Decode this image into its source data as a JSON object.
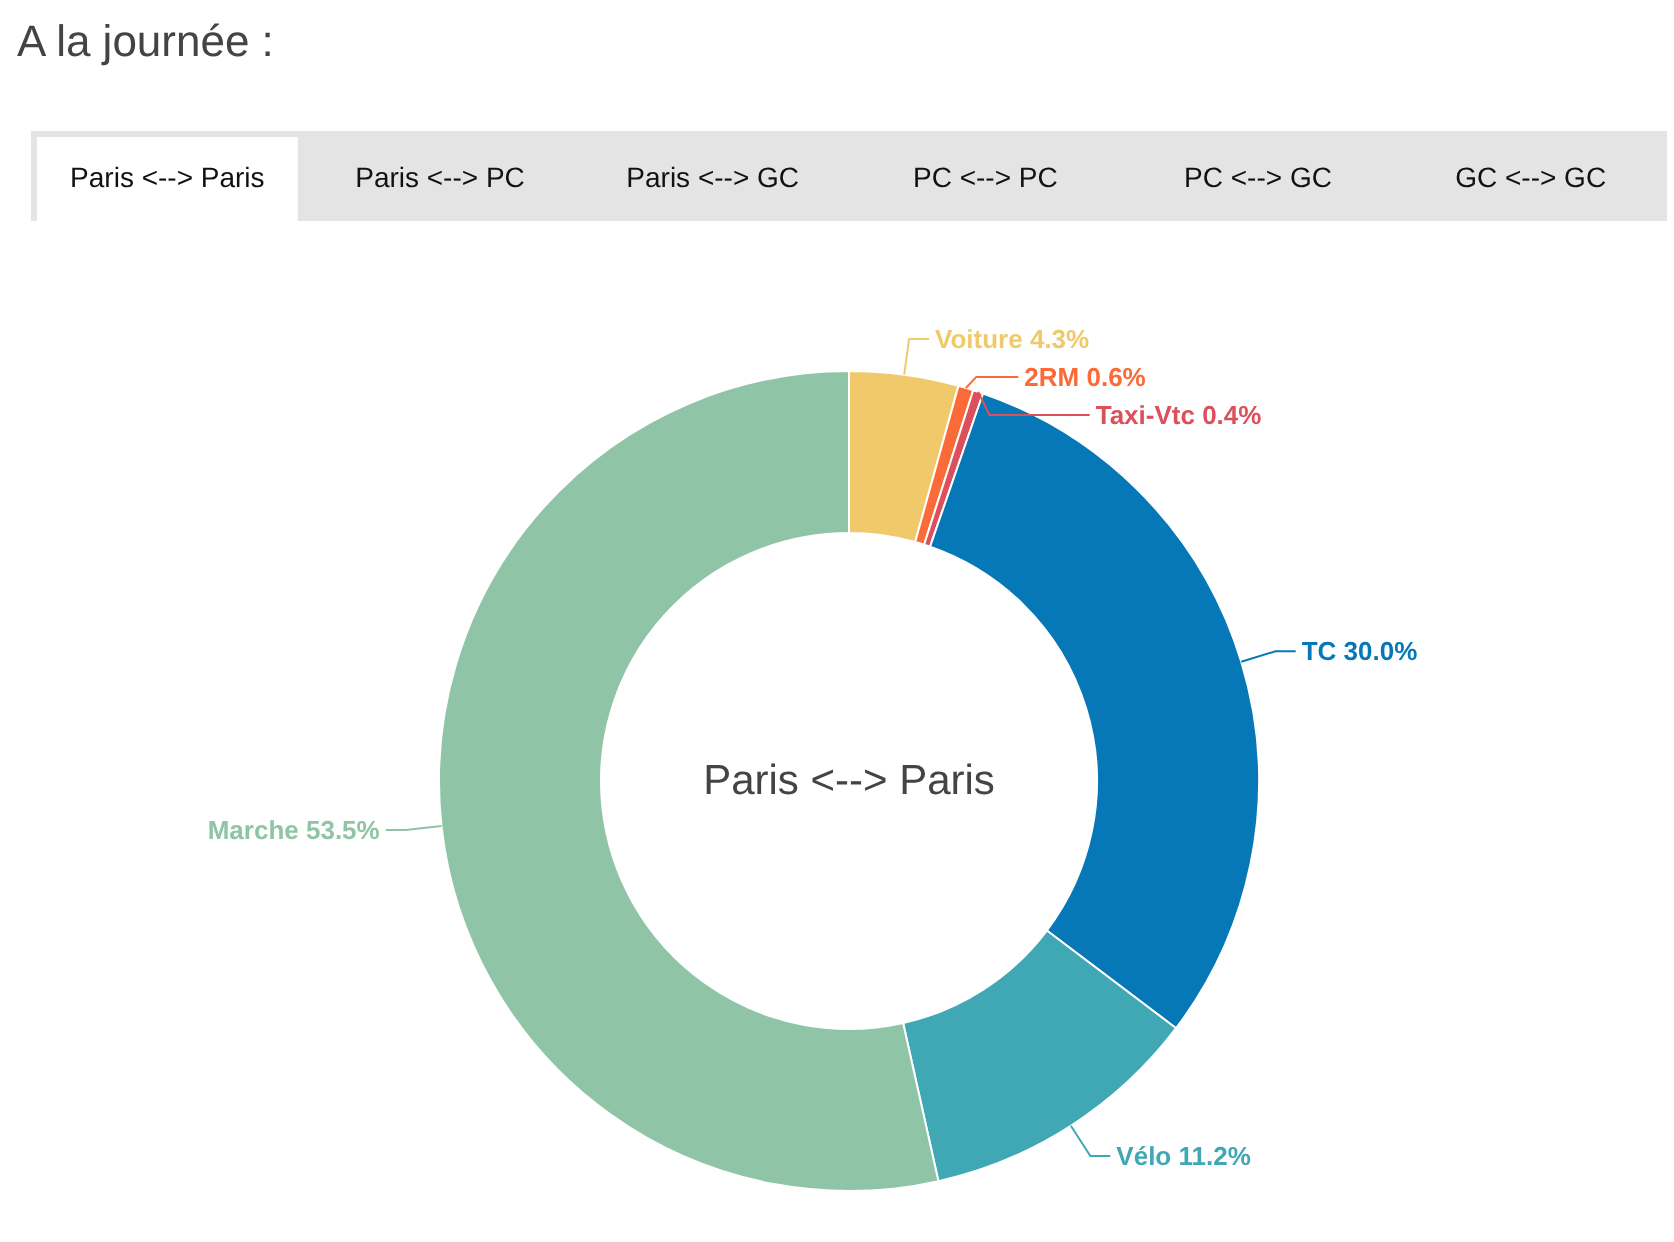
{
  "chart_data": {
    "type": "donut",
    "title": "A la journée :",
    "subtitle": "Paris <--> Paris",
    "annotations": [
      "Paris <--> Paris",
      "Paris <--> PC",
      "Paris <--> GC",
      "PC <--> PC",
      "PC <--> GC",
      "GC <--> GC"
    ],
    "categories": [
      "Voiture",
      "2RM",
      "Taxi-Vtc",
      "TC",
      "Vélo",
      "Marche"
    ],
    "values": [
      4.3,
      0.6,
      0.4,
      30.0,
      11.2,
      53.5
    ],
    "value_labels": [
      "4.3%",
      "0.6%",
      "0.4%",
      "30.0%",
      "11.2%",
      "53.5%"
    ],
    "colors": [
      "#f0c96a",
      "#fb6a37",
      "#dc505c",
      "#0678b8",
      "#40a8b5",
      "#8fc4a7"
    ]
  }
}
